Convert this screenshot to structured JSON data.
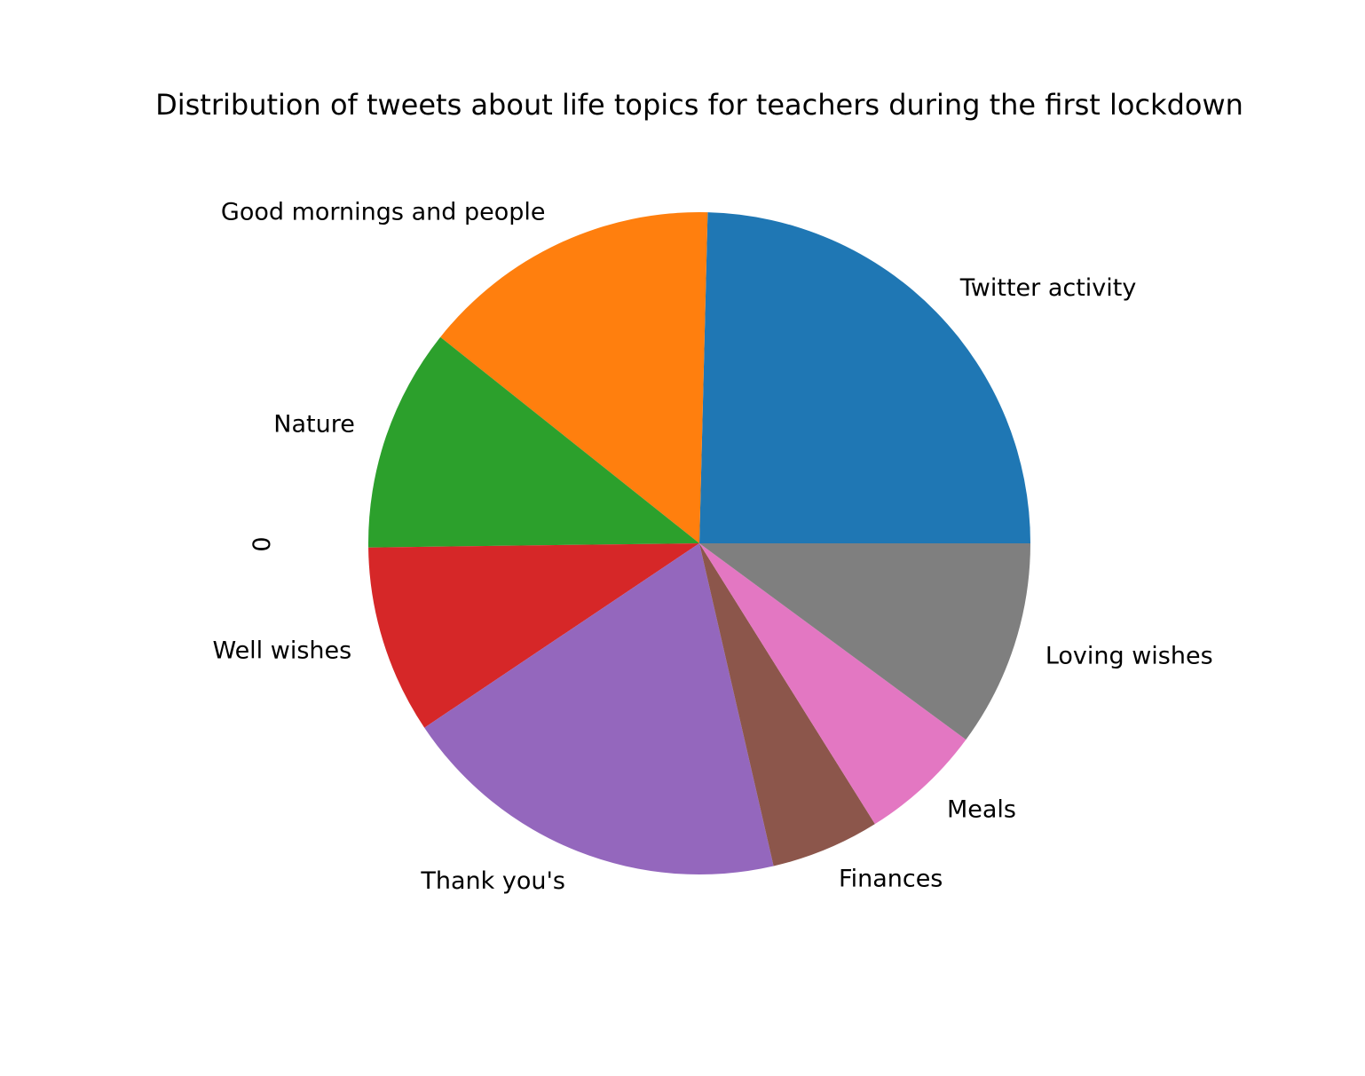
{
  "chart_data": {
    "type": "pie",
    "title": "Distribution of tweets about life topics for teachers during the first lockdown",
    "ylabel": "0",
    "start_angle_deg": 0,
    "direction": "counterclockwise",
    "slices": [
      {
        "label": "Twitter activity",
        "value": 24.6,
        "color": "#1f77b4"
      },
      {
        "label": "Good mornings and people",
        "value": 14.7,
        "color": "#ff7f0e"
      },
      {
        "label": "Nature",
        "value": 10.9,
        "color": "#2ca02c"
      },
      {
        "label": "Well wishes",
        "value": 9.2,
        "color": "#d62728"
      },
      {
        "label": "Thank you's",
        "value": 19.2,
        "color": "#9467bd"
      },
      {
        "label": "Finances",
        "value": 5.3,
        "color": "#8c564b"
      },
      {
        "label": "Meals",
        "value": 6.0,
        "color": "#e377c2"
      },
      {
        "label": "Loving wishes",
        "value": 10.1,
        "color": "#7f7f7f"
      }
    ]
  }
}
